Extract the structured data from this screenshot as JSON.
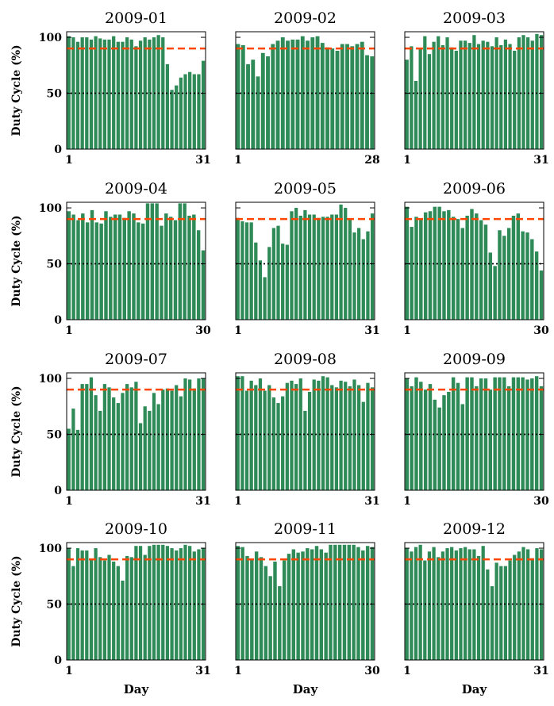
{
  "chart_data": [
    {
      "type": "bar",
      "title": "2009-01",
      "ylabel": "Duty Cycle (%)",
      "xlabel": "",
      "x_tick_labels": [
        "1",
        "31"
      ],
      "y_tick_labels": [
        "0",
        "50",
        "100"
      ],
      "ylim": [
        0,
        105
      ],
      "reference_lines": [
        {
          "value": 90,
          "color": "#FF4500",
          "style": "dashed"
        },
        {
          "value": 50,
          "color": "#000000",
          "style": "dotted"
        }
      ],
      "bar_color": "#2E8B57",
      "values": [
        101,
        100,
        96,
        100,
        100,
        98,
        101,
        99,
        98,
        98,
        101,
        96,
        96,
        100,
        98,
        92,
        97,
        100,
        98,
        100,
        102,
        100,
        76,
        53,
        57,
        64,
        67,
        69,
        67,
        67,
        79
      ]
    },
    {
      "type": "bar",
      "title": "2009-02",
      "ylabel": "",
      "xlabel": "",
      "x_tick_labels": [
        "1",
        "28"
      ],
      "y_tick_labels": [],
      "ylim": [
        0,
        105
      ],
      "reference_lines": [
        {
          "value": 90,
          "color": "#FF4500",
          "style": "dashed"
        },
        {
          "value": 50,
          "color": "#000000",
          "style": "dotted"
        }
      ],
      "bar_color": "#2E8B57",
      "values": [
        94,
        93,
        76,
        80,
        65,
        86,
        83,
        94,
        97,
        100,
        97,
        98,
        98,
        101,
        97,
        100,
        101,
        95,
        91,
        90,
        88,
        94,
        94,
        92,
        94,
        96,
        84,
        83
      ]
    },
    {
      "type": "bar",
      "title": "2009-03",
      "ylabel": "",
      "xlabel": "",
      "x_tick_labels": [
        "1",
        "31"
      ],
      "y_tick_labels": [],
      "ylim": [
        0,
        105
      ],
      "reference_lines": [
        {
          "value": 90,
          "color": "#FF4500",
          "style": "dashed"
        },
        {
          "value": 50,
          "color": "#000000",
          "style": "dotted"
        }
      ],
      "bar_color": "#2E8B57",
      "values": [
        80,
        92,
        61,
        90,
        101,
        85,
        96,
        101,
        93,
        100,
        91,
        88,
        97,
        97,
        95,
        102,
        94,
        97,
        96,
        92,
        100,
        93,
        98,
        94,
        88,
        100,
        102,
        100,
        97,
        103,
        102
      ]
    },
    {
      "type": "bar",
      "title": "2009-04",
      "ylabel": "Duty Cycle (%)",
      "xlabel": "",
      "x_tick_labels": [
        "1",
        "30"
      ],
      "y_tick_labels": [
        "0",
        "50",
        "100"
      ],
      "ylim": [
        0,
        105
      ],
      "reference_lines": [
        {
          "value": 90,
          "color": "#FF4500",
          "style": "dashed"
        },
        {
          "value": 50,
          "color": "#000000",
          "style": "dotted"
        }
      ],
      "bar_color": "#2E8B57",
      "values": [
        97,
        94,
        89,
        95,
        87,
        98,
        87,
        86,
        97,
        92,
        94,
        94,
        91,
        97,
        95,
        87,
        86,
        104,
        104,
        104,
        84,
        95,
        92,
        89,
        104,
        104,
        93,
        94,
        80,
        62
      ]
    },
    {
      "type": "bar",
      "title": "2009-05",
      "ylabel": "",
      "xlabel": "",
      "x_tick_labels": [
        "1",
        "31"
      ],
      "y_tick_labels": [],
      "ylim": [
        0,
        105
      ],
      "reference_lines": [
        {
          "value": 90,
          "color": "#FF4500",
          "style": "dashed"
        },
        {
          "value": 50,
          "color": "#000000",
          "style": "dotted"
        }
      ],
      "bar_color": "#2E8B57",
      "values": [
        91,
        88,
        87,
        87,
        69,
        53,
        38,
        65,
        82,
        84,
        68,
        67,
        97,
        100,
        93,
        98,
        94,
        94,
        91,
        92,
        92,
        94,
        94,
        103,
        100,
        90,
        78,
        82,
        72,
        79,
        95
      ]
    },
    {
      "type": "bar",
      "title": "2009-06",
      "ylabel": "",
      "xlabel": "",
      "x_tick_labels": [
        "1",
        "30"
      ],
      "y_tick_labels": [],
      "ylim": [
        0,
        105
      ],
      "reference_lines": [
        {
          "value": 90,
          "color": "#FF4500",
          "style": "dashed"
        },
        {
          "value": 50,
          "color": "#000000",
          "style": "dotted"
        }
      ],
      "bar_color": "#2E8B57",
      "values": [
        101,
        83,
        92,
        90,
        96,
        97,
        101,
        101,
        97,
        98,
        92,
        90,
        82,
        93,
        99,
        95,
        89,
        85,
        60,
        48,
        80,
        75,
        82,
        93,
        95,
        79,
        78,
        72,
        61,
        44
      ]
    },
    {
      "type": "bar",
      "title": "2009-07",
      "ylabel": "Duty Cycle (%)",
      "xlabel": "",
      "x_tick_labels": [
        "1",
        "31"
      ],
      "y_tick_labels": [
        "0",
        "50",
        "100"
      ],
      "ylim": [
        0,
        105
      ],
      "reference_lines": [
        {
          "value": 90,
          "color": "#FF4500",
          "style": "dashed"
        },
        {
          "value": 50,
          "color": "#000000",
          "style": "dotted"
        }
      ],
      "bar_color": "#2E8B57",
      "values": [
        55,
        73,
        54,
        95,
        95,
        101,
        85,
        71,
        95,
        92,
        83,
        78,
        87,
        95,
        92,
        97,
        60,
        75,
        71,
        87,
        77,
        90,
        91,
        89,
        94,
        84,
        100,
        99,
        91,
        100,
        100
      ]
    },
    {
      "type": "bar",
      "title": "2009-08",
      "ylabel": "",
      "xlabel": "",
      "x_tick_labels": [
        "1",
        "31"
      ],
      "y_tick_labels": [],
      "ylim": [
        0,
        105
      ],
      "reference_lines": [
        {
          "value": 90,
          "color": "#FF4500",
          "style": "dashed"
        },
        {
          "value": 50,
          "color": "#000000",
          "style": "dotted"
        }
      ],
      "bar_color": "#2E8B57",
      "values": [
        102,
        102,
        89,
        98,
        94,
        100,
        89,
        94,
        83,
        78,
        84,
        96,
        98,
        95,
        100,
        71,
        88,
        99,
        98,
        102,
        101,
        94,
        92,
        98,
        97,
        93,
        99,
        94,
        79,
        96,
        92
      ]
    },
    {
      "type": "bar",
      "title": "2009-09",
      "ylabel": "",
      "xlabel": "",
      "x_tick_labels": [
        "1",
        "30"
      ],
      "y_tick_labels": [],
      "ylim": [
        0,
        105
      ],
      "reference_lines": [
        {
          "value": 90,
          "color": "#FF4500",
          "style": "dashed"
        },
        {
          "value": 50,
          "color": "#000000",
          "style": "dotted"
        }
      ],
      "bar_color": "#2E8B57",
      "values": [
        100,
        93,
        101,
        97,
        90,
        95,
        81,
        74,
        85,
        88,
        101,
        96,
        77,
        101,
        101,
        93,
        100,
        100,
        90,
        101,
        101,
        101,
        93,
        101,
        101,
        101,
        99,
        100,
        102,
        93
      ]
    },
    {
      "type": "bar",
      "title": "2009-10",
      "ylabel": "Duty Cycle (%)",
      "xlabel": "Day",
      "x_tick_labels": [
        "1",
        "31"
      ],
      "y_tick_labels": [
        "0",
        "50",
        "100"
      ],
      "ylim": [
        0,
        105
      ],
      "reference_lines": [
        {
          "value": 90,
          "color": "#FF4500",
          "style": "dashed"
        },
        {
          "value": 50,
          "color": "#000000",
          "style": "dotted"
        }
      ],
      "bar_color": "#2E8B57",
      "values": [
        100,
        84,
        100,
        98,
        98,
        90,
        100,
        92,
        89,
        94,
        88,
        84,
        71,
        93,
        92,
        102,
        102,
        94,
        102,
        103,
        103,
        103,
        102,
        100,
        98,
        100,
        103,
        102,
        97,
        99,
        100
      ]
    },
    {
      "type": "bar",
      "title": "2009-11",
      "ylabel": "",
      "xlabel": "Day",
      "x_tick_labels": [
        "1",
        "30"
      ],
      "y_tick_labels": [],
      "ylim": [
        0,
        105
      ],
      "reference_lines": [
        {
          "value": 90,
          "color": "#FF4500",
          "style": "dashed"
        },
        {
          "value": 50,
          "color": "#000000",
          "style": "dotted"
        }
      ],
      "bar_color": "#2E8B57",
      "values": [
        102,
        101,
        93,
        90,
        97,
        92,
        84,
        75,
        88,
        66,
        89,
        95,
        99,
        96,
        97,
        100,
        99,
        102,
        99,
        96,
        103,
        103,
        103,
        103,
        103,
        103,
        101,
        98,
        102,
        101
      ]
    },
    {
      "type": "bar",
      "title": "2009-12",
      "ylabel": "",
      "xlabel": "Day",
      "x_tick_labels": [
        "1",
        "31"
      ],
      "y_tick_labels": [],
      "ylim": [
        0,
        105
      ],
      "reference_lines": [
        {
          "value": 90,
          "color": "#FF4500",
          "style": "dashed"
        },
        {
          "value": 50,
          "color": "#000000",
          "style": "dotted"
        }
      ],
      "bar_color": "#2E8B57",
      "values": [
        100,
        97,
        101,
        103,
        89,
        97,
        101,
        92,
        97,
        100,
        101,
        98,
        100,
        101,
        99,
        99,
        93,
        102,
        81,
        66,
        87,
        84,
        84,
        89,
        94,
        97,
        101,
        99,
        91,
        100,
        99
      ]
    }
  ]
}
